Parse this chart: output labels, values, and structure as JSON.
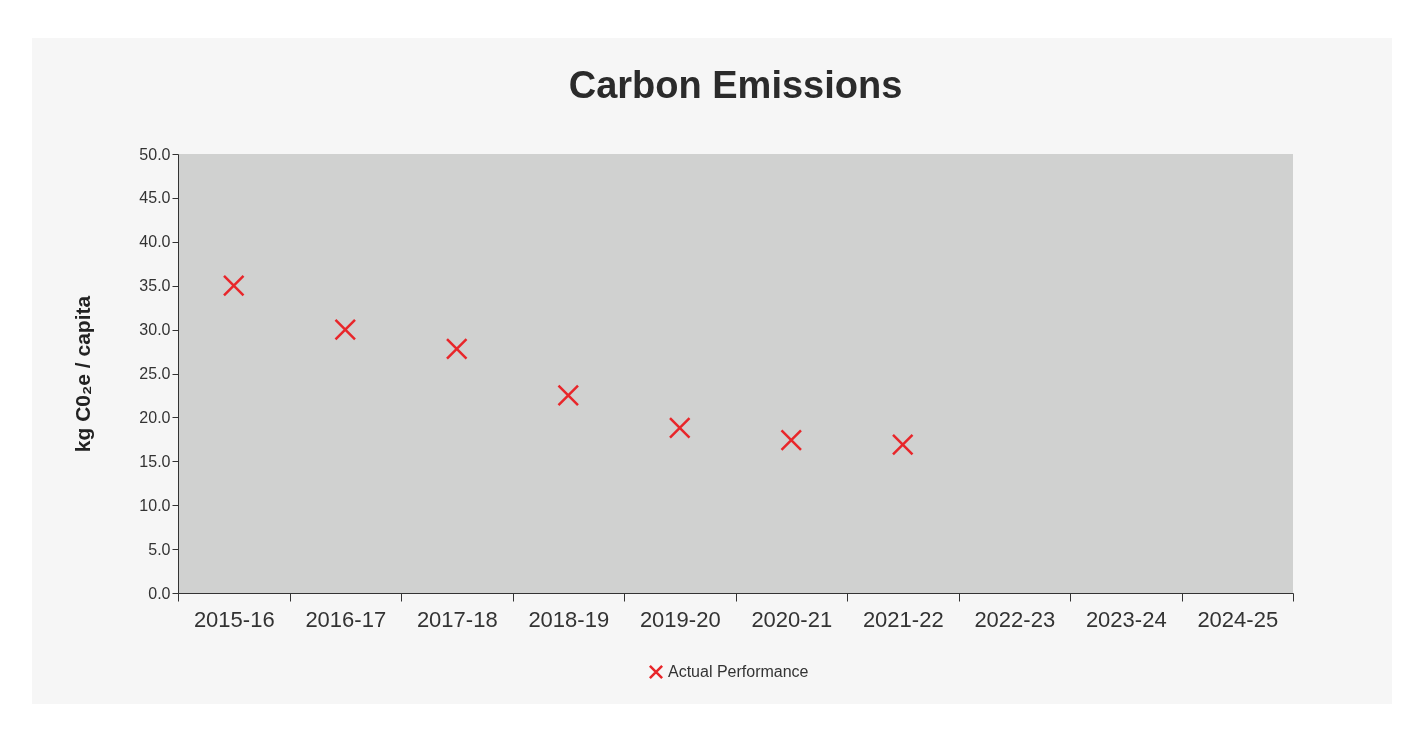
{
  "chart_data": {
    "type": "scatter",
    "title": "Carbon Emissions",
    "ylabel": "kg C0₂e / capita",
    "categories": [
      "2015-16",
      "2016-17",
      "2017-18",
      "2018-19",
      "2019-20",
      "2020-21",
      "2021-22",
      "2022-23",
      "2023-24",
      "2024-25"
    ],
    "series": [
      {
        "name": "Actual Performance",
        "color": "#e8262a",
        "values": [
          35.0,
          30.0,
          27.8,
          22.5,
          18.8,
          17.4,
          16.9,
          null,
          null,
          null
        ]
      }
    ],
    "ylim": [
      0,
      50
    ],
    "yticks": [
      {
        "value": 0,
        "label": "0.0"
      },
      {
        "value": 5,
        "label": "5.0"
      },
      {
        "value": 10,
        "label": "10.0"
      },
      {
        "value": 15,
        "label": "15.0"
      },
      {
        "value": 20,
        "label": "20.0"
      },
      {
        "value": 25,
        "label": "25.0"
      },
      {
        "value": 30,
        "label": "30.0"
      },
      {
        "value": 35,
        "label": "35.0"
      },
      {
        "value": 40,
        "label": "40.0"
      },
      {
        "value": 45,
        "label": "45.0"
      },
      {
        "value": 50,
        "label": "50.0"
      }
    ],
    "marker": "cross",
    "legend": "bottom",
    "grid": false
  }
}
